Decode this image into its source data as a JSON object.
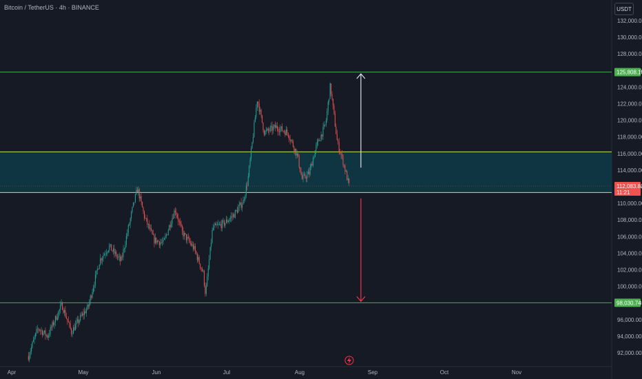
{
  "header": {
    "title": "Bitcoin / TetherUS · 4h · BINANCE",
    "currency": "USDT"
  },
  "colors": {
    "background": "#161a25",
    "up": "#26a69a",
    "down": "#ef5350",
    "level_line": "#4caf50",
    "zone_fill": "#0f3b48",
    "zone_border": "#d4e157",
    "arrow_up": "#e0e3eb",
    "arrow_down": "#f23645"
  },
  "chart_data": {
    "type": "candlestick",
    "title": "Bitcoin / TetherUS · 4h · BINANCE",
    "ylim": [
      90800,
      134400
    ],
    "y_ticks": [
      "132,000.00",
      "130,000.00",
      "128,000.00",
      "126,000.00",
      "124,000.00",
      "122,000.00",
      "120,000.00",
      "118,000.00",
      "116,000.00",
      "114,000.00",
      "112,000.00",
      "110,000.00",
      "108,000.00",
      "106,000.00",
      "104,000.00",
      "102,000.00",
      "100,000.00",
      "98,000.00",
      "96,000.00",
      "94,000.00",
      "92,000.00"
    ],
    "x_ticks": [
      "Apr",
      "May",
      "Jun",
      "Jul",
      "Aug",
      "Sep",
      "Oct",
      "Nov"
    ],
    "path": [
      [
        "Apr 8",
        91600
      ],
      [
        "Apr 12",
        95000
      ],
      [
        "Apr 16",
        94000
      ],
      [
        "Apr 22",
        97800
      ],
      [
        "Apr 26",
        94500
      ],
      [
        "Apr 30",
        96300
      ],
      [
        "May 3",
        97500
      ],
      [
        "May 8",
        103200
      ],
      [
        "May 12",
        104800
      ],
      [
        "May 17",
        103000
      ],
      [
        "May 22",
        109500
      ],
      [
        "May 24",
        111800
      ],
      [
        "May 27",
        108300
      ],
      [
        "May 31",
        105600
      ],
      [
        "Jun 4",
        105200
      ],
      [
        "Jun 9",
        109300
      ],
      [
        "Jun 12",
        106500
      ],
      [
        "Jun 17",
        104600
      ],
      [
        "Jun 21",
        101600
      ],
      [
        "Jun 22",
        99000
      ],
      [
        "Jun 25",
        107000
      ],
      [
        "Jun 30",
        107600
      ],
      [
        "Jul 4",
        108600
      ],
      [
        "Jul 8",
        110200
      ],
      [
        "Jul 10",
        112800
      ],
      [
        "Jul 12",
        117600
      ],
      [
        "Jul 14",
        122600
      ],
      [
        "Jul 17",
        118500
      ],
      [
        "Jul 22",
        119200
      ],
      [
        "Jul 27",
        118500
      ],
      [
        "Jul 31",
        115800
      ],
      [
        "Aug 2",
        112900
      ],
      [
        "Aug 5",
        113600
      ],
      [
        "Aug 8",
        116800
      ],
      [
        "Aug 12",
        119500
      ],
      [
        "Aug 14",
        124200
      ],
      [
        "Aug 17",
        117300
      ],
      [
        "Aug 19",
        115500
      ],
      [
        "Aug 22",
        112100
      ]
    ],
    "last_price": "112,083.81",
    "countdown": "11:21",
    "levels": [
      {
        "name": "resistance",
        "price": 125808.18,
        "label": "125,808.18"
      },
      {
        "name": "support",
        "price": 98030.74,
        "label": "98,030.74"
      }
    ],
    "zone": {
      "low": 111300,
      "high": 116200
    },
    "arrows": [
      {
        "direction": "up",
        "date": "Aug 27",
        "from": 114300,
        "to": 125600
      },
      {
        "direction": "down",
        "date": "Aug 27",
        "from": 110600,
        "to": 98200
      }
    ],
    "grid": false
  }
}
